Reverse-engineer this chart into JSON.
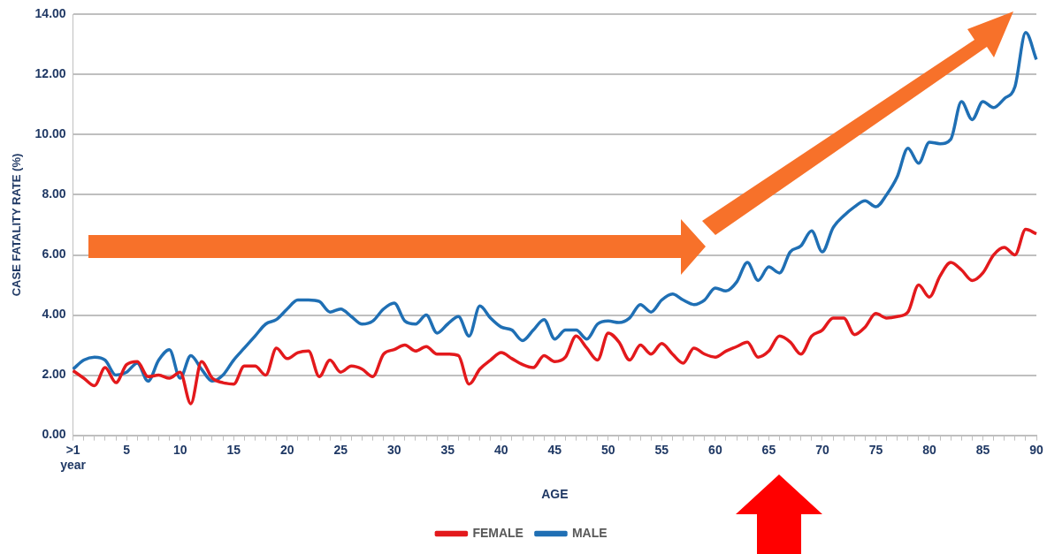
{
  "chart_data": {
    "type": "line",
    "xlabel": "AGE",
    "ylabel": "CASE FATALITY RATE (%)",
    "categories": [
      ">1 year",
      null,
      null,
      null,
      null,
      "5",
      null,
      null,
      null,
      null,
      "10",
      null,
      null,
      null,
      null,
      "15",
      null,
      null,
      null,
      null,
      "20",
      null,
      null,
      null,
      null,
      "25",
      null,
      null,
      null,
      null,
      "30",
      null,
      null,
      null,
      null,
      "35",
      null,
      null,
      null,
      null,
      "40",
      null,
      null,
      null,
      null,
      "45",
      null,
      null,
      null,
      null,
      "50",
      null,
      null,
      null,
      null,
      "55",
      null,
      null,
      null,
      null,
      "60",
      null,
      null,
      null,
      null,
      "65",
      null,
      null,
      null,
      null,
      "70",
      null,
      null,
      null,
      null,
      "75",
      null,
      null,
      null,
      null,
      "80",
      null,
      null,
      null,
      null,
      "85",
      null,
      null,
      null,
      null,
      "90"
    ],
    "series": [
      {
        "name": "FEMALE",
        "color": "#e3191c",
        "values": [
          2.15,
          1.9,
          1.65,
          2.25,
          1.75,
          2.35,
          2.45,
          1.95,
          2.0,
          1.9,
          2.1,
          1.05,
          2.45,
          1.9,
          1.75,
          1.7,
          2.3,
          2.3,
          2.0,
          2.9,
          2.55,
          2.75,
          2.8,
          1.95,
          2.5,
          2.1,
          2.3,
          2.2,
          1.95,
          2.7,
          2.85,
          3.0,
          2.8,
          2.95,
          2.7,
          2.7,
          2.65,
          1.7,
          2.2,
          2.5,
          2.75,
          2.55,
          2.35,
          2.25,
          2.65,
          2.45,
          2.6,
          3.3,
          2.9,
          2.5,
          3.4,
          3.1,
          2.5,
          3.0,
          2.7,
          3.05,
          2.7,
          2.4,
          2.9,
          2.7,
          2.6,
          2.8,
          2.95,
          3.1,
          2.6,
          2.8,
          3.3,
          3.1,
          2.7,
          3.3,
          3.5,
          3.9,
          3.9,
          3.35,
          3.6,
          4.05,
          3.9,
          3.95,
          4.1,
          5.0,
          4.6,
          5.3,
          5.75,
          5.5,
          5.15,
          5.4,
          6.0,
          6.25,
          6.0,
          6.85,
          6.7
        ]
      },
      {
        "name": "MALE",
        "color": "#1f6fb4",
        "values": [
          2.2,
          2.5,
          2.6,
          2.5,
          2.0,
          2.1,
          2.4,
          1.8,
          2.5,
          2.85,
          1.9,
          2.65,
          2.2,
          1.8,
          2.0,
          2.5,
          2.9,
          3.3,
          3.7,
          3.85,
          4.2,
          4.5,
          4.5,
          4.45,
          4.1,
          4.2,
          3.95,
          3.7,
          3.8,
          4.2,
          4.4,
          3.8,
          3.7,
          4.0,
          3.4,
          3.7,
          3.95,
          3.3,
          4.3,
          3.9,
          3.6,
          3.5,
          3.15,
          3.5,
          3.85,
          3.2,
          3.5,
          3.5,
          3.2,
          3.7,
          3.8,
          3.75,
          3.9,
          4.35,
          4.1,
          4.5,
          4.7,
          4.5,
          4.35,
          4.5,
          4.9,
          4.8,
          5.1,
          5.75,
          5.15,
          5.6,
          5.4,
          6.1,
          6.3,
          6.8,
          6.1,
          6.9,
          7.3,
          7.6,
          7.8,
          7.6,
          8.0,
          8.6,
          9.55,
          9.05,
          9.75,
          9.7,
          9.85,
          11.1,
          10.5,
          11.1,
          10.9,
          11.2,
          11.6,
          13.4,
          12.5
        ]
      }
    ],
    "ylim": [
      0,
      14
    ],
    "yticks": [
      {
        "value": 0,
        "label": "0.00"
      },
      {
        "value": 2,
        "label": "2.00"
      },
      {
        "value": 4,
        "label": "4.00"
      },
      {
        "value": 6,
        "label": "6.00"
      },
      {
        "value": 8,
        "label": "8.00"
      },
      {
        "value": 10,
        "label": "10.00"
      },
      {
        "value": 12,
        "label": "12.00"
      },
      {
        "value": 14,
        "label": "14.00"
      }
    ],
    "grid": "y",
    "legend": "bottom"
  }
}
